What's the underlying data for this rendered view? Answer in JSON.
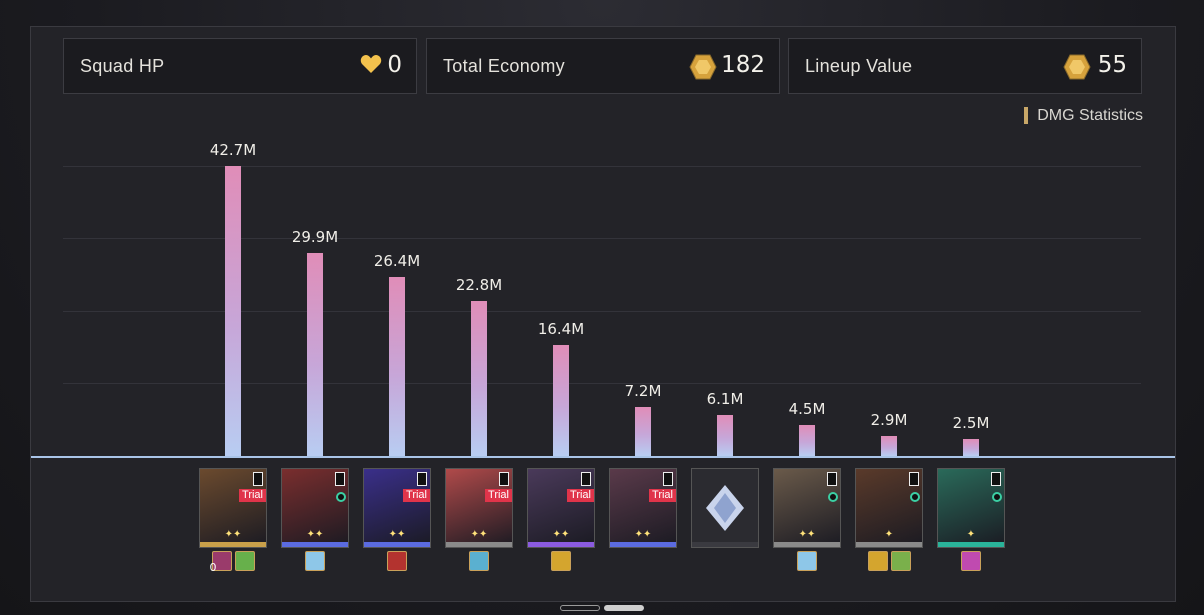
{
  "header": {
    "squad_hp": {
      "label": "Squad HP",
      "value": "0",
      "icon": "heart-icon"
    },
    "total_economy": {
      "label": "Total Economy",
      "value": "182",
      "icon": "coin-icon"
    },
    "lineup_value": {
      "label": "Lineup Value",
      "value": "55",
      "icon": "coin-icon"
    }
  },
  "dmg_tag": "DMG Statistics",
  "colors": {
    "accent": "#c8a768",
    "bar_top": "#e08db8",
    "bar_bottom": "#b8cdf2",
    "baseline": "#a9c4e8",
    "trial": "#e0344a"
  },
  "chart_data": {
    "type": "bar",
    "title": "DMG Statistics",
    "values": [
      42.7,
      29.9,
      26.4,
      22.8,
      16.4,
      7.2,
      6.1,
      4.5,
      2.9,
      2.5
    ],
    "labels": [
      "42.7M",
      "29.9M",
      "26.4M",
      "22.8M",
      "16.4M",
      "7.2M",
      "6.1M",
      "4.5M",
      "2.9M",
      "2.5M"
    ],
    "unit": "M",
    "grid": true
  },
  "units": [
    {
      "trial": "Trial",
      "stars": "✦✦",
      "stripe": "#c9a04a",
      "art": "#6b4a2e",
      "relics": [
        {
          "color": "#9a3b6b",
          "count": "0"
        },
        {
          "color": "#67b04b"
        }
      ]
    },
    {
      "trial": "",
      "stars": "✦✦",
      "stripe": "#5b6be0",
      "art": "#7a2e2e",
      "ring": true,
      "relics": [
        {
          "color": "#8ec7e8"
        }
      ]
    },
    {
      "trial": "Trial",
      "stars": "✦✦",
      "stripe": "#5b6be0",
      "art": "#3a2f8a",
      "relics": [
        {
          "color": "#b3332f"
        }
      ]
    },
    {
      "trial": "Trial",
      "stars": "✦✦",
      "stripe": "#8a8a8a",
      "art": "#b04a4a",
      "relics": [
        {
          "color": "#5ab0d0"
        }
      ]
    },
    {
      "trial": "Trial",
      "stars": "✦✦",
      "stripe": "#8b5be0",
      "art": "#4a3a5a",
      "relics": [
        {
          "color": "#d4a52e"
        }
      ]
    },
    {
      "trial": "Trial",
      "stars": "✦✦",
      "stripe": "#5b6be0",
      "art": "#5a3a4a",
      "relics": []
    },
    {
      "trial": "",
      "stars": "",
      "stripe": "#3a3a40",
      "art": "#2b2b30",
      "placeholder": true,
      "relics": []
    },
    {
      "trial": "",
      "stars": "✦✦",
      "stripe": "#8a8a8a",
      "art": "#6a5a4a",
      "ring": true,
      "relics": [
        {
          "color": "#8ec7e8"
        }
      ]
    },
    {
      "trial": "",
      "stars": "✦",
      "stripe": "#8a8a8a",
      "art": "#5a3a2a",
      "ring": true,
      "relics": [
        {
          "color": "#d4a52e"
        },
        {
          "color": "#7ab04b"
        }
      ]
    },
    {
      "trial": "",
      "stars": "✦",
      "stripe": "#2ab39a",
      "art": "#2a6a5a",
      "ring": true,
      "relics": [
        {
          "color": "#c04ab0"
        }
      ]
    }
  ]
}
